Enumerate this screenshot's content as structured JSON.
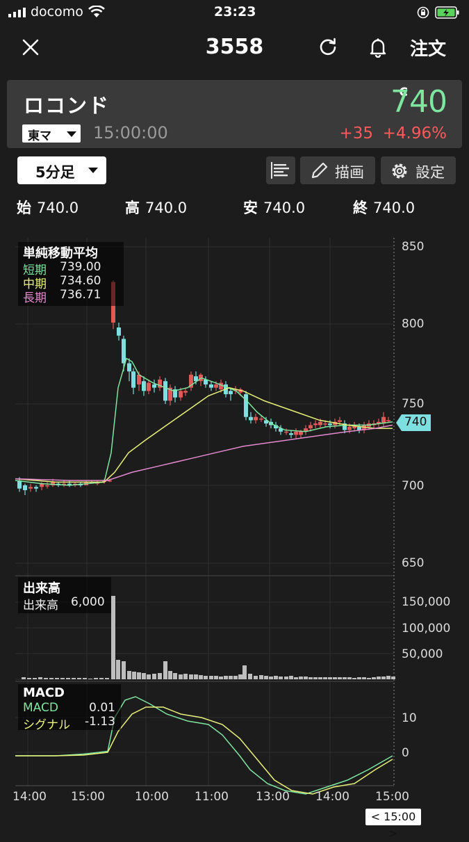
{
  "status_bar": {
    "carrier": "docomo",
    "time": "23:23"
  },
  "nav": {
    "title": "3558",
    "order_label": "注文"
  },
  "stock": {
    "name": "ロコンド",
    "price_flag": "C",
    "price": "740",
    "market": "東マ",
    "time": "15:00:00",
    "change": "+35",
    "change_pct": "+4.96%"
  },
  "toolbar": {
    "period": "5分足",
    "draw_label": "描画",
    "settings_label": "設定"
  },
  "ohlc": {
    "open_label": "始",
    "open": "740.0",
    "high_label": "高",
    "high": "740.0",
    "low_label": "安",
    "low": "740.0",
    "close_label": "終",
    "close": "740.0"
  },
  "sma_legend": {
    "title": "単純移動平均",
    "short_label": "短期",
    "short_value": "739.00",
    "mid_label": "中期",
    "mid_value": "734.60",
    "long_label": "長期",
    "long_value": "736.71"
  },
  "volume_legend": {
    "title": "出来高",
    "label": "出来高",
    "value": "6,000"
  },
  "macd_legend": {
    "title": "MACD",
    "macd_label": "MACD",
    "macd_value": "0.01",
    "signal_label": "シグナル",
    "signal_value": "-1.13"
  },
  "price_axis": [
    "850",
    "800",
    "750",
    "700",
    "650"
  ],
  "volume_axis": [
    "150,000",
    "100,000",
    "50,000"
  ],
  "macd_axis": [
    "10",
    "0"
  ],
  "time_axis": [
    "14:00",
    "15:00",
    "10:00",
    "11:00",
    "13:00",
    "14:00",
    "15:00"
  ],
  "current_price_marker": "740",
  "cursor_time": "< 15:00 >",
  "colors": {
    "up": "#e05a5a",
    "down": "#7ddfe0",
    "sma_short": "#7fe6a0",
    "sma_mid": "#e8f27a",
    "sma_long": "#e58ad0",
    "macd": "#7fe6a0",
    "signal": "#e8f27a"
  }
}
